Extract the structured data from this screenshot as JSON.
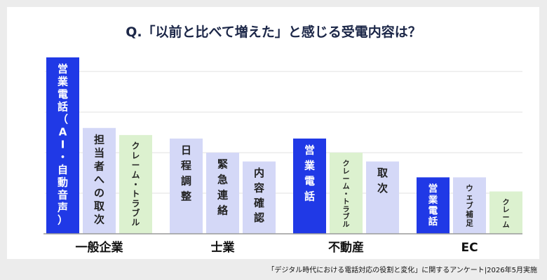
{
  "chart_data": {
    "type": "bar",
    "title": "Q.「以前と比べて増えた」と感じる受電内容は？",
    "categories": [
      "一般企業",
      "士業",
      "不動産",
      "EC"
    ],
    "ylim": [
      0,
      100
    ],
    "grid": true,
    "groups": [
      {
        "category": "一般企業",
        "bars": [
          {
            "label": "営業電話（AI・自動音声）",
            "value": 100,
            "highlight": true
          },
          {
            "label": "担当者への取次",
            "value": 60,
            "highlight": false
          },
          {
            "label": "クレーム・トラブル",
            "value": 56,
            "highlight": false,
            "accent": "green"
          }
        ]
      },
      {
        "category": "士業",
        "bars": [
          {
            "label": "日程調整",
            "value": 54,
            "highlight": false
          },
          {
            "label": "緊急連絡",
            "value": 46,
            "highlight": false
          },
          {
            "label": "内容確認",
            "value": 41,
            "highlight": false
          }
        ]
      },
      {
        "category": "不動産",
        "bars": [
          {
            "label": "営業電話",
            "value": 54,
            "highlight": true
          },
          {
            "label": "クレーム・トラブル",
            "value": 46,
            "highlight": false,
            "accent": "green"
          },
          {
            "label": "取次",
            "value": 41,
            "highlight": false
          }
        ]
      },
      {
        "category": "EC",
        "bars": [
          {
            "label": "営業電話",
            "value": 32,
            "highlight": true
          },
          {
            "label": "ウェブ補足",
            "value": 32,
            "highlight": false
          },
          {
            "label": "クレーム",
            "value": 24,
            "highlight": false,
            "accent": "green"
          }
        ]
      }
    ]
  },
  "source_note": "「デジタル時代における電話対応の役割と変化」に関するアンケート|2026年5月実施",
  "colors": {
    "highlight": "#2039e6",
    "lavender": "#d4d8f7",
    "green": "#dcf1cf",
    "grid": "#e2e2e2",
    "axis": "#9a9a9a",
    "title": "#1c2748"
  }
}
